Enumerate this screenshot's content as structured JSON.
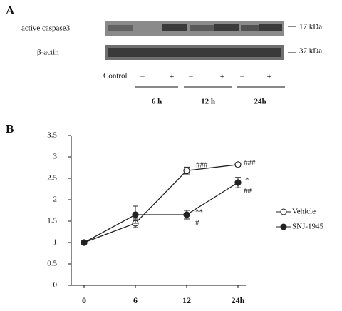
{
  "panel_a": {
    "label": "A",
    "rows": [
      {
        "name": "active caspase3",
        "size": "17 kDa"
      },
      {
        "name": "β-actin",
        "size": "37 kDa"
      }
    ],
    "control_label": "Control",
    "signs": [
      "−",
      "+",
      "−",
      "+",
      "−",
      "+"
    ],
    "times": [
      "6 h",
      "12 h",
      "24h"
    ]
  },
  "panel_b_label": "B",
  "chart_data": {
    "type": "line",
    "categories": [
      "0",
      "6",
      "12",
      "24h"
    ],
    "series": [
      {
        "name": "Vehicle",
        "color": "#222",
        "marker_fill": "#ffffff",
        "values": [
          1,
          1.45,
          2.68,
          2.82
        ],
        "errors": [
          0.03,
          0.1,
          0.08,
          0.04
        ]
      },
      {
        "name": "SNJ-1945",
        "color": "#222",
        "marker_fill": "#222222",
        "values": [
          1,
          1.65,
          1.65,
          2.4
        ],
        "errors": [
          0.03,
          0.2,
          0.1,
          0.12
        ]
      }
    ],
    "annotations": [
      {
        "text": "###"
      },
      {
        "text": "###"
      },
      {
        "text": "*"
      },
      {
        "text": "##"
      },
      {
        "text": "**"
      },
      {
        "text": "#"
      }
    ],
    "ylim": [
      0,
      3.5
    ],
    "yticks": [
      0,
      0.5,
      1,
      1.5,
      2,
      2.5,
      3,
      3.5
    ],
    "grid": false,
    "legend": "right"
  }
}
